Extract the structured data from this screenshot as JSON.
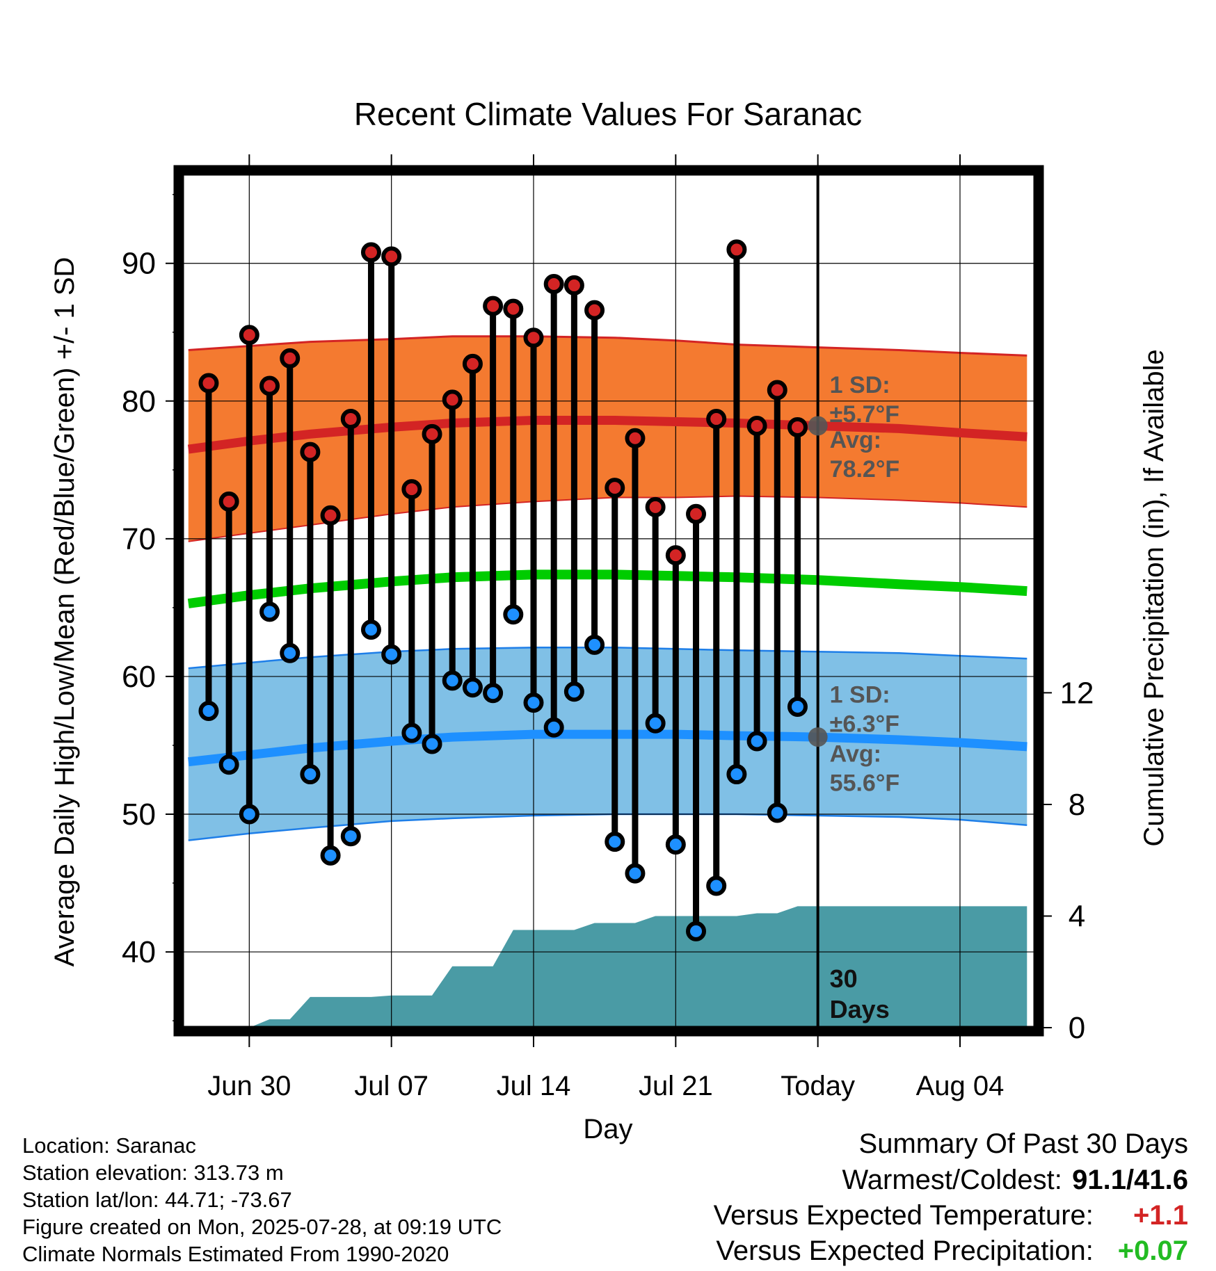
{
  "chart_data": {
    "type": "line",
    "title": "Recent Climate Values For Saranac",
    "xlabel": "Day",
    "ylabel": "Average Daily High/Low/Mean (Red/Blue/Green) +/- 1 SD",
    "y2label": "Cumulative Precipitation (in), If Available",
    "xlim": [
      -3.3,
      38.7
    ],
    "ylim": [
      34.5,
      96.5
    ],
    "y2lim": [
      0,
      30.6
    ],
    "xticks": [
      {
        "x": 0,
        "label": "Jun 30"
      },
      {
        "x": 7,
        "label": "Jul 07"
      },
      {
        "x": 14,
        "label": "Jul 14"
      },
      {
        "x": 21,
        "label": "Jul 21"
      },
      {
        "x": 28,
        "label": "Today"
      },
      {
        "x": 35,
        "label": "Aug 04"
      }
    ],
    "yticks": [
      40,
      50,
      60,
      70,
      80,
      90
    ],
    "y2ticks": [
      0,
      4,
      8,
      12
    ],
    "today_x": 28,
    "today_label": [
      "30",
      "Days"
    ],
    "grid": true,
    "days": [
      -2,
      -1,
      0,
      1,
      2,
      3,
      4,
      5,
      6,
      7,
      8,
      9,
      10,
      11,
      12,
      13,
      14,
      15,
      16,
      17,
      18,
      19,
      20,
      21,
      22,
      23,
      24,
      25,
      26,
      27
    ],
    "series": [
      {
        "name": "High",
        "color": "#d32424",
        "values": [
          81.3,
          72.7,
          84.8,
          81.1,
          83.1,
          76.3,
          71.7,
          78.7,
          90.8,
          90.5,
          73.6,
          77.6,
          80.1,
          82.7,
          86.9,
          86.7,
          84.6,
          88.5,
          88.4,
          86.6,
          73.7,
          77.3,
          72.3,
          68.8,
          71.8,
          78.7,
          91.0,
          78.2,
          80.8,
          78.1
        ]
      },
      {
        "name": "Low",
        "color": "#1e90ff",
        "values": [
          57.5,
          53.6,
          50.0,
          64.7,
          61.7,
          52.9,
          47.0,
          48.4,
          63.4,
          61.6,
          55.9,
          55.1,
          59.7,
          59.2,
          58.8,
          64.5,
          58.1,
          56.3,
          58.9,
          62.3,
          48.0,
          45.7,
          56.6,
          47.8,
          41.5,
          44.8,
          52.9,
          55.3,
          50.1,
          57.8
        ]
      }
    ],
    "normals": {
      "x": [
        -3,
        0,
        3,
        7,
        10,
        14,
        18,
        21,
        24,
        28,
        32,
        35,
        38.3
      ],
      "high_mean": [
        76.5,
        77.1,
        77.6,
        78.1,
        78.4,
        78.6,
        78.6,
        78.5,
        78.4,
        78.2,
        78.0,
        77.7,
        77.4
      ],
      "high_upper": [
        83.7,
        84.0,
        84.3,
        84.5,
        84.7,
        84.7,
        84.6,
        84.4,
        84.1,
        83.9,
        83.7,
        83.5,
        83.3
      ],
      "high_lower": [
        69.8,
        70.4,
        71.0,
        71.8,
        72.3,
        72.7,
        73.0,
        73.0,
        73.1,
        73.0,
        72.8,
        72.6,
        72.3
      ],
      "mean": [
        65.3,
        65.9,
        66.4,
        66.9,
        67.2,
        67.4,
        67.4,
        67.3,
        67.2,
        67.0,
        66.7,
        66.5,
        66.2
      ],
      "low_mean": [
        53.8,
        54.3,
        54.8,
        55.3,
        55.6,
        55.8,
        55.8,
        55.8,
        55.7,
        55.6,
        55.4,
        55.2,
        54.9
      ],
      "low_upper": [
        60.6,
        61.0,
        61.4,
        61.8,
        62.0,
        62.1,
        62.1,
        62.0,
        61.9,
        61.8,
        61.7,
        61.5,
        61.3
      ],
      "low_lower": [
        48.1,
        48.6,
        49.0,
        49.5,
        49.7,
        49.9,
        50.0,
        50.0,
        50.0,
        49.9,
        49.8,
        49.6,
        49.2
      ],
      "colors": {
        "high_band": "#f47a30",
        "high_line": "#d32424",
        "mean_line": "#00cc00",
        "low_band": "#80c0e6",
        "low_line": "#1e90ff",
        "low_edge": "#1e7ee8"
      }
    },
    "precipitation": {
      "color": "#4a9ba5",
      "x": [
        0,
        1,
        1,
        2,
        2,
        3,
        3,
        4,
        5,
        6,
        7,
        7,
        8,
        9,
        10,
        10,
        11,
        12,
        13,
        13,
        14,
        15,
        16,
        17,
        17,
        18,
        19,
        20,
        20,
        21,
        22,
        23,
        24,
        25,
        25,
        26,
        27,
        27,
        28,
        38.3
      ],
      "values": [
        0,
        0.3,
        0.3,
        0.3,
        0.3,
        1.1,
        1.1,
        1.1,
        1.1,
        1.1,
        1.15,
        1.15,
        1.15,
        1.15,
        2.2,
        2.2,
        2.2,
        2.2,
        3.5,
        3.5,
        3.5,
        3.5,
        3.5,
        3.75,
        3.75,
        3.75,
        3.75,
        4.0,
        4.0,
        4.0,
        4.0,
        4.0,
        4.0,
        4.1,
        4.1,
        4.1,
        4.35,
        4.35,
        4.35,
        4.35
      ]
    },
    "annotations": {
      "high_sd_label": [
        "1 SD:",
        "±5.7°F"
      ],
      "high_avg_label": [
        "Avg:",
        "78.2°F"
      ],
      "low_sd_label": [
        "1 SD:",
        "±6.3°F"
      ],
      "low_avg_label": [
        "Avg:",
        "55.6°F"
      ],
      "high_avg_value": 78.2,
      "low_avg_value": 55.6
    }
  },
  "info": {
    "location": "Location: Saranac",
    "elevation": "Station elevation: 313.73 m",
    "latlon": "Station lat/lon: 44.71; -73.67",
    "created": "Figure created on Mon, 2025-07-28, at 09:19 UTC",
    "normals": "Climate Normals Estimated From 1990-2020"
  },
  "summary": {
    "title": "Summary Of Past 30 Days",
    "warm_cold_label": "Warmest/Coldest:",
    "warm_cold_value": "91.1/41.6",
    "temp_label": "Versus Expected Temperature:",
    "temp_value": "+1.1",
    "temp_color": "#d32424",
    "precip_label": "Versus Expected Precipitation:",
    "precip_value": "+0.07",
    "precip_color": "#22bb22"
  }
}
